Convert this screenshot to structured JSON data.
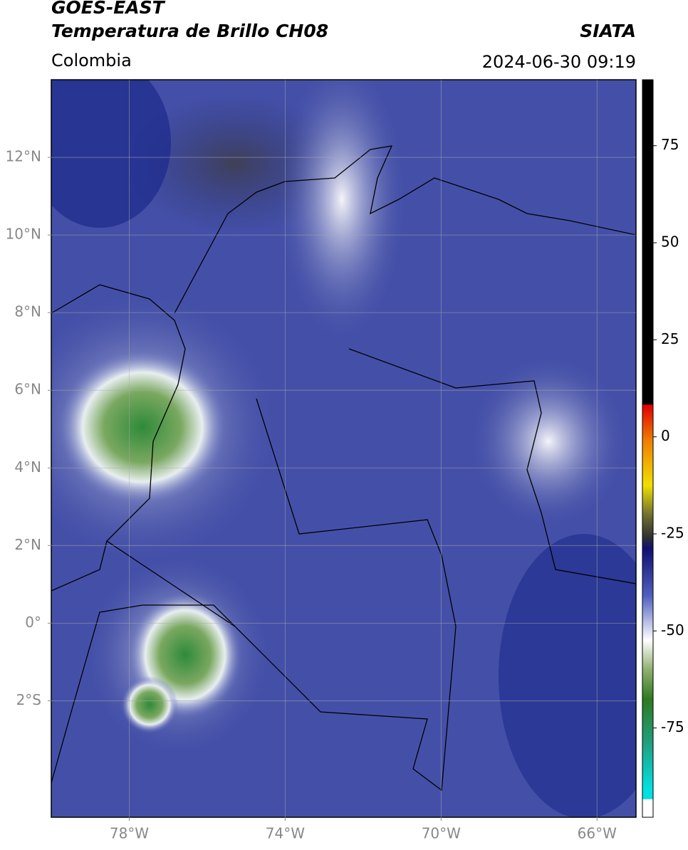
{
  "header": {
    "title": "GOES-EAST",
    "subtitle": "Temperatura de Brillo CH08",
    "source": "SIATA",
    "region": "Colombia",
    "datetime": "2024-06-30 09:19"
  },
  "map": {
    "lonlim": [
      -80,
      -65
    ],
    "latlim": [
      -5,
      14
    ],
    "lonticks": [
      {
        "value": -78,
        "label": "78°W"
      },
      {
        "value": -74,
        "label": "74°W"
      },
      {
        "value": -70,
        "label": "70°W"
      },
      {
        "value": -66,
        "label": "66°W"
      }
    ],
    "latticks": [
      {
        "value": 12,
        "label": "12°N"
      },
      {
        "value": 10,
        "label": "10°N"
      },
      {
        "value": 8,
        "label": "8°N"
      },
      {
        "value": 6,
        "label": "6°N"
      },
      {
        "value": 4,
        "label": "4°N"
      },
      {
        "value": 2,
        "label": "2°N"
      },
      {
        "value": 0,
        "label": "0°"
      },
      {
        "value": -2,
        "label": "2°S"
      }
    ],
    "grid": true
  },
  "colorbar": {
    "lim": [
      -98,
      92
    ],
    "ticks": [
      75,
      50,
      25,
      0,
      -25,
      -50,
      -75
    ]
  }
}
